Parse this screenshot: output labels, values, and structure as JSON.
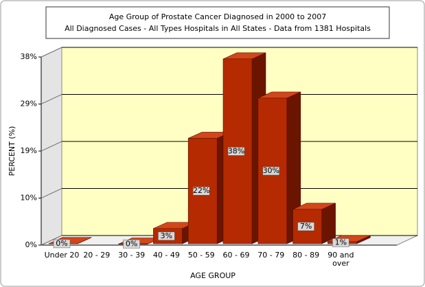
{
  "chart_data": {
    "type": "bar3d",
    "title": "Age Group of Prostate Cancer  Diagnosed in 2000 to 2007",
    "subtitle": "All Diagnosed Cases -  All Types Hospitals in All States - Data from 1381 Hospitals",
    "x_label": "AGE GROUP",
    "y_label": "PERCENT (%)",
    "categories": [
      "Under 20",
      "20 - 29",
      "30 - 39",
      "40 - 49",
      "50 - 59",
      "60 - 69",
      "70 - 79",
      "80 - 89",
      "90 and over"
    ],
    "values": [
      0.3,
      null,
      0.2,
      3.4,
      21.8,
      38,
      30,
      7.3,
      0.7
    ],
    "value_labels": [
      "0%",
      null,
      "0%",
      "3%",
      "22%",
      "38%",
      "30%",
      "7%",
      "1%"
    ],
    "color": "#b52a00",
    "ylim": [
      0,
      38.4
    ],
    "yticks": [
      {
        "value": 0,
        "label": "0%"
      },
      {
        "value": 9.6,
        "label": "10%"
      },
      {
        "value": 19.2,
        "label": "19%"
      },
      {
        "value": 28.8,
        "label": "29%"
      },
      {
        "value": 38.4,
        "label": "38%"
      }
    ],
    "grid": true
  }
}
